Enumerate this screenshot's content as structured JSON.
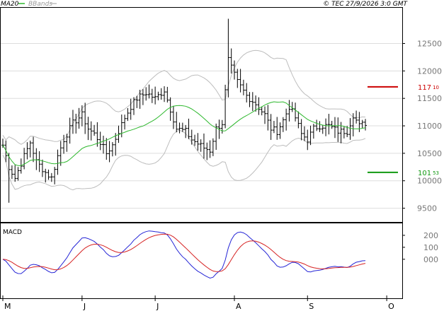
{
  "header": {
    "legend_ma": "MA20",
    "legend_bb": "BBands",
    "copyright": "© TEC 27/9/2026 3:0 GMT"
  },
  "colors": {
    "ma": "#2db82d",
    "bbands": "#bdbdbd",
    "price": "#000000",
    "grid": "#dddddd",
    "macd": "#2626d6",
    "signal": "#d62222",
    "resistance": "#cc0000",
    "support": "#119911"
  },
  "chart_data": [
    {
      "type": "ohlc",
      "ylim": [
        9250,
        13150
      ],
      "yticks": [
        9500,
        10000,
        10500,
        11000,
        11500,
        12000,
        12500
      ],
      "ytick_labels": [
        "9500",
        "10000",
        "10500",
        "11000",
        "11500",
        "12000",
        "12500"
      ],
      "xlabels": [
        "M",
        "J",
        "J",
        "A",
        "S",
        "O"
      ],
      "xlabel_positions": [
        0,
        26,
        50,
        76,
        100,
        126
      ],
      "n": 120,
      "grid": true,
      "resistance": {
        "value": 11710,
        "label_main": "117",
        "label_small": "10"
      },
      "support": {
        "value": 10153,
        "label_main": "101",
        "label_small": "53"
      }
    },
    {
      "type": "line",
      "title": "MACD",
      "ylim": [
        -320,
        300
      ],
      "yticks": [
        0,
        100,
        200
      ],
      "ytick_labels": [
        "000",
        "100",
        "200"
      ]
    }
  ]
}
